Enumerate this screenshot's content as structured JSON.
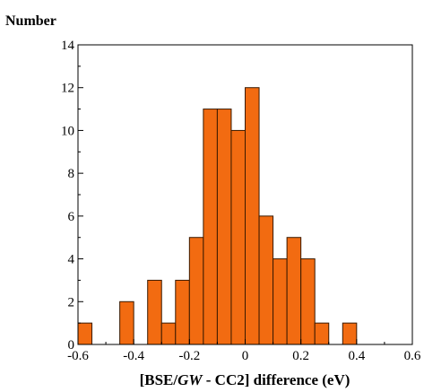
{
  "chart_data": {
    "type": "bar",
    "ylabel": "Number",
    "xlabel": {
      "prefix": "[BSE/",
      "italic": "GW",
      "suffix": " - CC2] difference (eV)"
    },
    "xlim": [
      -0.6,
      0.6
    ],
    "ylim": [
      0,
      14
    ],
    "bin_width": 0.05,
    "xticks": [
      -0.6,
      -0.4,
      -0.2,
      0,
      0.2,
      0.4,
      0.6
    ],
    "xtick_labels": [
      "-0.6",
      "-0.4",
      "-0.2",
      "0",
      "0.2",
      "0.4",
      "0.6"
    ],
    "yticks": [
      0,
      2,
      4,
      6,
      8,
      10,
      12,
      14
    ],
    "ytick_labels": [
      "0",
      "2",
      "4",
      "6",
      "8",
      "10",
      "12",
      "14"
    ],
    "bins": [
      {
        "x": -0.575,
        "count": 1
      },
      {
        "x": -0.425,
        "count": 2
      },
      {
        "x": -0.325,
        "count": 3
      },
      {
        "x": -0.275,
        "count": 1
      },
      {
        "x": -0.225,
        "count": 3
      },
      {
        "x": -0.175,
        "count": 5
      },
      {
        "x": -0.125,
        "count": 11
      },
      {
        "x": -0.075,
        "count": 11
      },
      {
        "x": -0.025,
        "count": 10
      },
      {
        "x": 0.025,
        "count": 12
      },
      {
        "x": 0.075,
        "count": 6
      },
      {
        "x": 0.125,
        "count": 4
      },
      {
        "x": 0.175,
        "count": 5
      },
      {
        "x": 0.225,
        "count": 4
      },
      {
        "x": 0.275,
        "count": 1
      },
      {
        "x": 0.375,
        "count": 1
      }
    ],
    "colors": {
      "bar": "#f26b11",
      "edge": "#3a1a00"
    }
  }
}
